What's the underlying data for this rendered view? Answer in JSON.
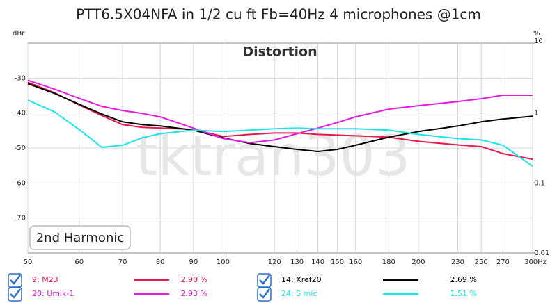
{
  "chart_data": {
    "type": "line",
    "title": "PTT6.5X04NFA in 1/2 cu ft Fb=40Hz 4 microphones @1cm",
    "subtitle": "Distortion",
    "button": "2nd Harmonic",
    "watermark": "tktran303",
    "ylabel": "dBr",
    "y2label": "%",
    "x": [
      50,
      55,
      60,
      65,
      70,
      75,
      80,
      90,
      100,
      110,
      120,
      130,
      140,
      150,
      160,
      180,
      200,
      230,
      250,
      270,
      300
    ],
    "xlim": [
      50,
      300
    ],
    "xscale": "log",
    "xticks": [
      50,
      60,
      70,
      80,
      90,
      100,
      120,
      130,
      140,
      150,
      160,
      180,
      200,
      230,
      250,
      270,
      {
        "value": 300,
        "label": "300Hz"
      }
    ],
    "ylim": [
      -80,
      -20
    ],
    "yticks": [
      -30,
      -40,
      -50,
      -60,
      -70
    ],
    "y2lim": [
      0.01,
      10
    ],
    "y2scale": "log",
    "y2ticks": [
      10,
      1,
      0.1,
      0.01
    ],
    "grid": true,
    "series": [
      {
        "name": "9: M23",
        "color": "#e8174d",
        "summary": "2.90 %",
        "values": [
          -31.2,
          -34.2,
          -37.7,
          -40.7,
          -43.3,
          -44.1,
          -44.3,
          -44.7,
          -46.7,
          -46.1,
          -45.7,
          -45.7,
          -46.1,
          -46.3,
          -46.5,
          -46.9,
          -48.1,
          -49.1,
          -49.6,
          -51.6,
          -53.2
        ]
      },
      {
        "name": "14: Xref20",
        "color": "#000000",
        "summary": "2.69 %",
        "values": [
          -31.6,
          -34.4,
          -37.5,
          -40.3,
          -42.5,
          -43.3,
          -43.7,
          -44.9,
          -47.1,
          -48.7,
          -49.6,
          -50.4,
          -51.0,
          -50.4,
          -49.2,
          -46.9,
          -45.3,
          -43.7,
          -42.5,
          -41.7,
          -40.9
        ]
      },
      {
        "name": "20: Umik-1",
        "color": "#e619e0",
        "summary": "2.93 %",
        "values": [
          -30.6,
          -33.2,
          -35.8,
          -38.1,
          -39.3,
          -40.1,
          -41.1,
          -44.3,
          -47.3,
          -48.5,
          -47.7,
          -45.9,
          -44.3,
          -42.7,
          -41.1,
          -38.9,
          -37.9,
          -36.7,
          -35.9,
          -34.9,
          -34.9
        ]
      },
      {
        "name": "24: S mic",
        "color": "#19e6e6",
        "summary": "1.51 %",
        "values": [
          -36.3,
          -39.7,
          -44.7,
          -49.8,
          -49.2,
          -47.1,
          -45.9,
          -44.9,
          -45.3,
          -44.9,
          -44.5,
          -44.3,
          -44.5,
          -44.5,
          -44.5,
          -44.9,
          -46.1,
          -47.3,
          -47.7,
          -49.2,
          -55.2
        ]
      }
    ]
  }
}
